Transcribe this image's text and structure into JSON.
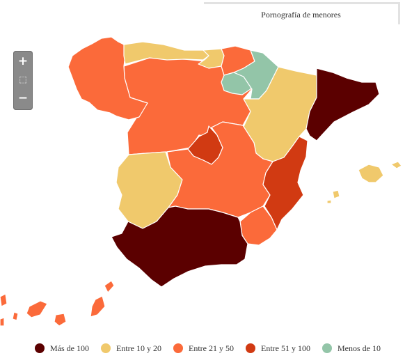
{
  "title": "Pornografía de menores",
  "zoom": {
    "in_icon": "plus-icon",
    "reset_icon": "home-icon",
    "out_icon": "minus-icon"
  },
  "colors": {
    "mas_100": "#5b0000",
    "entre_10_20": "#f0c96c",
    "entre_21_50": "#fb6a3a",
    "entre_51_100": "#d13a12",
    "menos_10": "#93c5a8"
  },
  "legend": [
    {
      "label": "Más de 100",
      "color": "#5b0000"
    },
    {
      "label": "Entre 10 y 20",
      "color": "#f0c96c"
    },
    {
      "label": "Entre 21 y 50",
      "color": "#fb6a3a"
    },
    {
      "label": "Entre 51 y 100",
      "color": "#d13a12"
    },
    {
      "label": "Menos de 10",
      "color": "#93c5a8"
    }
  ],
  "regions": [
    {
      "name": "Galicia",
      "class": "Entre 21 y 50"
    },
    {
      "name": "Asturias",
      "class": "Entre 10 y 20"
    },
    {
      "name": "Cantabria",
      "class": "Entre 10 y 20"
    },
    {
      "name": "País Vasco",
      "class": "Entre 21 y 50"
    },
    {
      "name": "Navarra",
      "class": "Menos de 10"
    },
    {
      "name": "La Rioja",
      "class": "Menos de 10"
    },
    {
      "name": "Aragón",
      "class": "Entre 10 y 20"
    },
    {
      "name": "Cataluña",
      "class": "Más de 100"
    },
    {
      "name": "Castilla y León",
      "class": "Entre 21 y 50"
    },
    {
      "name": "Madrid",
      "class": "Entre 51 y 100"
    },
    {
      "name": "Castilla-La Mancha",
      "class": "Entre 21 y 50"
    },
    {
      "name": "Extremadura",
      "class": "Entre 10 y 20"
    },
    {
      "name": "Comunidad Valenciana",
      "class": "Entre 51 y 100"
    },
    {
      "name": "Murcia",
      "class": "Entre 21 y 50"
    },
    {
      "name": "Andalucía",
      "class": "Más de 100"
    },
    {
      "name": "Islas Baleares",
      "class": "Entre 10 y 20"
    },
    {
      "name": "Canarias",
      "class": "Entre 21 y 50"
    }
  ]
}
